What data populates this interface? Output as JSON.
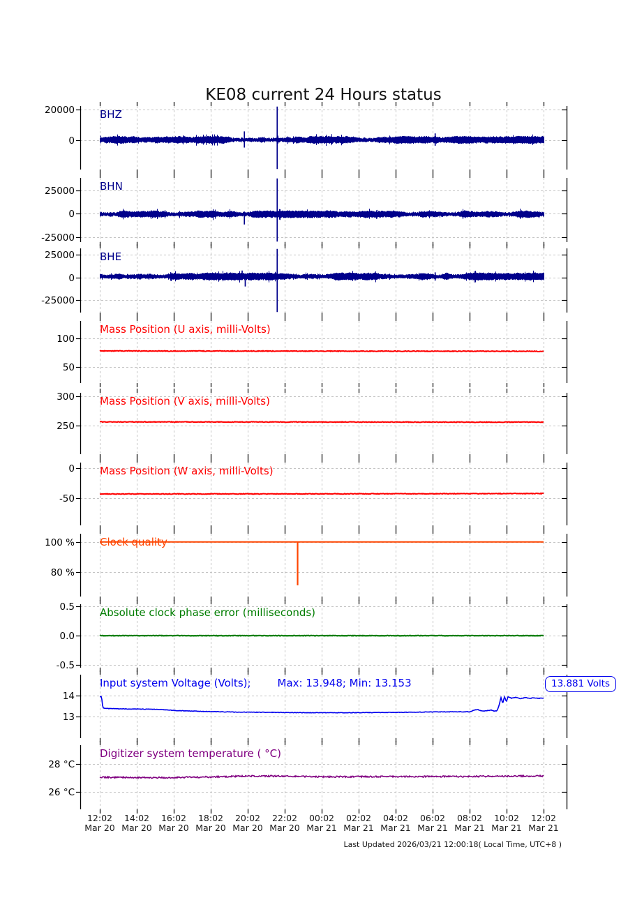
{
  "page": {
    "title": "KE08 current 24 Hours status",
    "footer": "Last Updated 2026/03/21 12:00:18( Local Time, UTC+8 )"
  },
  "annotation": {
    "text": "13.881 Volts",
    "color": "#0000ee"
  },
  "chart_data": {
    "type": "line",
    "title": "KE08 current 24 Hours status",
    "grid": true,
    "x_axis": {
      "span_hours": 24,
      "ticks": [
        {
          "time": "12:02",
          "date": "Mar 20"
        },
        {
          "time": "14:02",
          "date": "Mar 20"
        },
        {
          "time": "16:02",
          "date": "Mar 20"
        },
        {
          "time": "18:02",
          "date": "Mar 20"
        },
        {
          "time": "20:02",
          "date": "Mar 20"
        },
        {
          "time": "22:02",
          "date": "Mar 20"
        },
        {
          "time": "00:02",
          "date": "Mar 21"
        },
        {
          "time": "02:02",
          "date": "Mar 21"
        },
        {
          "time": "04:02",
          "date": "Mar 21"
        },
        {
          "time": "06:02",
          "date": "Mar 21"
        },
        {
          "time": "08:02",
          "date": "Mar 21"
        },
        {
          "time": "10:02",
          "date": "Mar 21"
        },
        {
          "time": "12:02",
          "date": "Mar 21"
        }
      ]
    },
    "subplots": [
      {
        "label": "BHZ",
        "color": "#00008b",
        "type": "band",
        "ylim": [
          -19000,
          22300
        ],
        "yticks": [
          {
            "value": 20000,
            "label": "20000"
          },
          {
            "value": 0,
            "label": "0"
          }
        ],
        "baseline": 300,
        "noise_amp": 1600,
        "spikes": [
          {
            "t": 0.325,
            "up": 5500,
            "down": 5000
          },
          {
            "t": 0.399,
            "up": 99999,
            "down": 99999
          },
          {
            "t": 0.755,
            "up": 4200,
            "down": 3800
          }
        ]
      },
      {
        "label": "BHN",
        "color": "#00008b",
        "type": "band",
        "ylim": [
          -30300,
          38500
        ],
        "yticks": [
          {
            "value": 25000,
            "label": "25000"
          },
          {
            "value": 0,
            "label": "0"
          },
          {
            "value": -25000,
            "label": "-25000"
          }
        ],
        "baseline": -400,
        "noise_amp": 2600,
        "spikes": [
          {
            "t": 0.325,
            "up": 2500,
            "down": 11000
          },
          {
            "t": 0.399,
            "up": 99999,
            "down": 99999
          },
          {
            "t": 0.755,
            "up": 3200,
            "down": 3200
          }
        ]
      },
      {
        "label": "BHE",
        "color": "#00008b",
        "type": "band",
        "ylim": [
          -38600,
          31800
        ],
        "yticks": [
          {
            "value": 25000,
            "label": "25000"
          },
          {
            "value": 0,
            "label": "0"
          },
          {
            "value": -25000,
            "label": "-25000"
          }
        ],
        "baseline": 1000,
        "noise_amp": 2800,
        "spikes": [
          {
            "t": 0.32,
            "up": 6500,
            "down": 3000
          },
          {
            "t": 0.327,
            "up": 3000,
            "down": 11000
          },
          {
            "t": 0.399,
            "up": 99999,
            "down": 99999
          },
          {
            "t": 0.755,
            "up": 4500,
            "down": 4500
          }
        ]
      },
      {
        "label": "Mass Position (U axis, milli-Volts)",
        "color": "#ff0000",
        "type": "line",
        "ylim": [
          22,
          130
        ],
        "yticks": [
          {
            "value": 100,
            "label": "100"
          },
          {
            "value": 50,
            "label": "50"
          }
        ],
        "points": [
          [
            0,
            77.8
          ],
          [
            0.5,
            77.5
          ],
          [
            1,
            77.2
          ]
        ],
        "noise": 0.6
      },
      {
        "label": "Mass Position (V axis, milli-Volts)",
        "color": "#ff0000",
        "type": "line",
        "ylim": [
          201,
          306
        ],
        "yticks": [
          {
            "value": 300,
            "label": "300"
          },
          {
            "value": 250,
            "label": "250"
          }
        ],
        "points": [
          [
            0,
            256.3
          ],
          [
            0.5,
            256.0
          ],
          [
            1,
            255.8
          ]
        ],
        "noise": 0.55
      },
      {
        "label": "Mass Position (W axis, milli-Volts)",
        "color": "#ff0000",
        "type": "line",
        "ylim": [
          -96,
          9.5
        ],
        "yticks": [
          {
            "value": 0,
            "label": "0"
          },
          {
            "value": -50,
            "label": "-50"
          }
        ],
        "points": [
          [
            0,
            -43.3
          ],
          [
            0.6,
            -43.0
          ],
          [
            1,
            -42.5
          ]
        ],
        "noise": 0.55
      },
      {
        "label": "Clock quality",
        "color": "#ff4500",
        "type": "clock",
        "ylim": [
          63.5,
          105.5
        ],
        "yticks": [
          {
            "value": 100,
            "label": "100 %"
          },
          {
            "value": 80,
            "label": "80 %"
          }
        ],
        "points": [
          [
            0,
            100
          ],
          [
            1,
            100
          ]
        ],
        "noise": 0,
        "dip": {
          "t": 0.445,
          "min": 71
        }
      },
      {
        "label": "Absolute clock phase error (milliseconds)",
        "color": "#007d00",
        "type": "line",
        "ylim": [
          -0.55,
          0.54
        ],
        "yticks": [
          {
            "value": 0.5,
            "label": "0.5"
          },
          {
            "value": 0.0,
            "label": "0.0"
          },
          {
            "value": -0.5,
            "label": "-0.5"
          }
        ],
        "points": [
          [
            0,
            0
          ],
          [
            1,
            0
          ]
        ],
        "noise": 0.004
      },
      {
        "label": "Input system Voltage (Volts);",
        "stats": "Max: 13.948; Min: 13.153",
        "color": "#0000ee",
        "type": "line",
        "ylim": [
          11.95,
          15.0
        ],
        "yticks": [
          {
            "value": 14,
            "label": "14"
          },
          {
            "value": 13,
            "label": "13"
          }
        ],
        "points": [
          [
            0,
            13.948
          ],
          [
            0.004,
            13.945
          ],
          [
            0.007,
            13.4
          ],
          [
            0.02,
            13.37
          ],
          [
            0.06,
            13.355
          ],
          [
            0.1,
            13.345
          ],
          [
            0.13,
            13.335
          ],
          [
            0.17,
            13.28
          ],
          [
            0.23,
            13.235
          ],
          [
            0.3,
            13.205
          ],
          [
            0.38,
            13.19
          ],
          [
            0.46,
            13.175
          ],
          [
            0.54,
            13.17
          ],
          [
            0.62,
            13.18
          ],
          [
            0.7,
            13.195
          ],
          [
            0.76,
            13.21
          ],
          [
            0.8,
            13.215
          ],
          [
            0.835,
            13.22
          ],
          [
            0.845,
            13.31
          ],
          [
            0.852,
            13.32
          ],
          [
            0.862,
            13.245
          ],
          [
            0.872,
            13.27
          ],
          [
            0.882,
            13.3
          ],
          [
            0.889,
            13.25
          ],
          [
            0.895,
            13.26
          ],
          [
            0.9,
            13.55
          ],
          [
            0.904,
            13.9
          ],
          [
            0.908,
            13.62
          ],
          [
            0.912,
            13.95
          ],
          [
            0.916,
            13.7
          ],
          [
            0.92,
            13.93
          ],
          [
            0.928,
            13.87
          ],
          [
            0.938,
            13.91
          ],
          [
            0.948,
            13.85
          ],
          [
            0.958,
            13.9
          ],
          [
            0.968,
            13.86
          ],
          [
            0.978,
            13.89
          ],
          [
            0.988,
            13.86
          ],
          [
            1.0,
            13.881
          ]
        ],
        "noise": 0.012,
        "max": 13.948,
        "min": 13.153,
        "last_value": 13.881
      },
      {
        "label": "Digitizer system temperature ( °C)",
        "color": "#800080",
        "type": "line",
        "ylim": [
          24.8,
          29.3
        ],
        "yticks": [
          {
            "value": 28,
            "label": "28 °C"
          },
          {
            "value": 26,
            "label": "26 °C"
          }
        ],
        "points": [
          [
            0,
            27.05
          ],
          [
            0.08,
            27.03
          ],
          [
            0.15,
            27.02
          ],
          [
            0.25,
            27.07
          ],
          [
            0.33,
            27.13
          ],
          [
            0.42,
            27.13
          ],
          [
            0.5,
            27.08
          ],
          [
            0.6,
            27.09
          ],
          [
            0.7,
            27.1
          ],
          [
            0.8,
            27.1
          ],
          [
            0.9,
            27.12
          ],
          [
            1.0,
            27.14
          ]
        ],
        "noise": 0.05
      }
    ]
  }
}
